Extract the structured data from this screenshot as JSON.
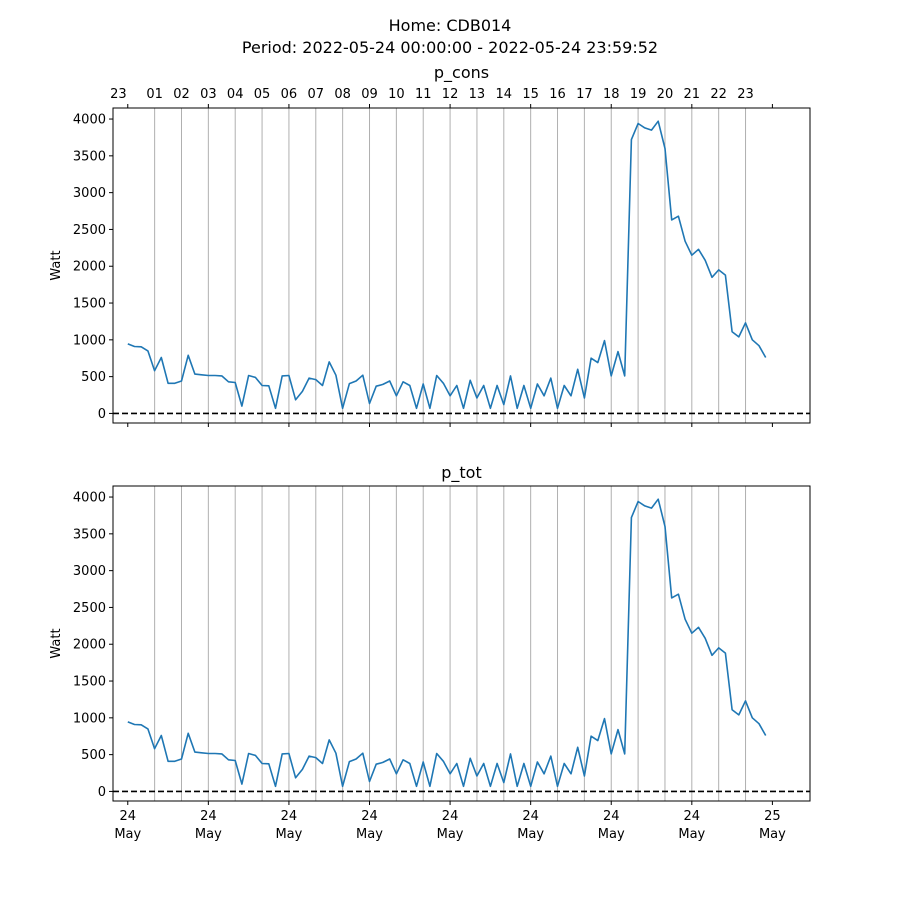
{
  "figure": {
    "title_line1": "Home: CDB014",
    "title_line2": "Period: 2022-05-24 00:00:00 - 2022-05-24 23:59:52"
  },
  "colors": {
    "series": "#1f77b4",
    "hour_grid": "#b0b0b0",
    "zero_line": "#000000"
  },
  "chart_data": [
    {
      "type": "line",
      "title": "p_cons",
      "ylabel": "Watt",
      "xlabel": "",
      "ylim": [
        -130,
        4150
      ],
      "yticks": [
        0,
        500,
        1000,
        1500,
        2000,
        2500,
        3000,
        3500,
        4000
      ],
      "xlim_hours": [
        -0.55,
        25.4
      ],
      "top_hour_tick_labels": [
        "23",
        "01",
        "02",
        "03",
        "04",
        "05",
        "06",
        "07",
        "08",
        "09",
        "10",
        "11",
        "12",
        "13",
        "14",
        "15",
        "16",
        "17",
        "18",
        "19",
        "20",
        "21",
        "22",
        "23"
      ],
      "bottom_date_ticks": [
        {
          "day": "24",
          "month": "May"
        },
        {
          "day": "24",
          "month": "May"
        },
        {
          "day": "24",
          "month": "May"
        },
        {
          "day": "24",
          "month": "May"
        },
        {
          "day": "24",
          "month": "May"
        },
        {
          "day": "24",
          "month": "May"
        },
        {
          "day": "24",
          "month": "May"
        },
        {
          "day": "24",
          "month": "May"
        },
        {
          "day": "25",
          "month": "May"
        }
      ],
      "grid": "vertical hourly",
      "zero_reference_line": true,
      "series": [
        {
          "name": "",
          "x_hours": [
            0.0,
            0.25,
            0.5,
            0.75,
            1.0,
            1.25,
            1.5,
            1.75,
            2.0,
            2.25,
            2.5,
            2.75,
            3.0,
            3.25,
            3.5,
            3.75,
            4.0,
            4.25,
            4.5,
            4.75,
            5.0,
            5.25,
            5.5,
            5.75,
            6.0,
            6.25,
            6.5,
            6.75,
            7.0,
            7.25,
            7.5,
            7.75,
            8.0,
            8.25,
            8.5,
            8.75,
            9.0,
            9.25,
            9.5,
            9.75,
            10.0,
            10.25,
            10.5,
            10.75,
            11.0,
            11.25,
            11.5,
            11.75,
            12.0,
            12.25,
            12.5,
            12.75,
            13.0,
            13.25,
            13.5,
            13.75,
            14.0,
            14.25,
            14.5,
            14.75,
            15.0,
            15.25,
            15.5,
            15.75,
            16.0,
            16.25,
            16.5,
            16.75,
            17.0,
            17.25,
            17.5,
            17.75,
            18.0,
            18.25,
            18.5,
            18.75,
            19.0,
            19.25,
            19.5,
            19.75,
            20.0,
            20.25,
            20.5,
            20.75,
            21.0,
            21.25,
            21.5,
            21.75,
            22.0,
            22.25,
            22.5,
            22.75,
            23.0,
            23.25,
            23.5,
            23.75
          ],
          "values": [
            945,
            910,
            905,
            850,
            580,
            760,
            410,
            410,
            440,
            790,
            535,
            525,
            515,
            515,
            510,
            430,
            420,
            100,
            515,
            490,
            380,
            375,
            70,
            510,
            515,
            185,
            300,
            480,
            460,
            380,
            700,
            520,
            70,
            405,
            440,
            520,
            135,
            370,
            395,
            440,
            240,
            430,
            380,
            70,
            400,
            70,
            515,
            410,
            240,
            380,
            70,
            450,
            210,
            380,
            70,
            380,
            120,
            510,
            70,
            380,
            70,
            400,
            240,
            480,
            70,
            380,
            240,
            600,
            210,
            750,
            690,
            990,
            510,
            840,
            510,
            3720,
            3940,
            3880,
            3850,
            3970,
            3600,
            2630,
            2680,
            2340,
            2150,
            2230,
            2080,
            1850,
            1950,
            1880,
            1110,
            1040,
            1230,
            1000,
            920,
            760
          ]
        }
      ]
    },
    {
      "type": "line",
      "title": "p_tot",
      "ylabel": "Watt",
      "xlabel": "",
      "ylim": [
        -130,
        4150
      ],
      "yticks": [
        0,
        500,
        1000,
        1500,
        2000,
        2500,
        3000,
        3500,
        4000
      ],
      "xlim_hours": [
        -0.55,
        25.4
      ],
      "bottom_date_ticks": [
        {
          "day": "24",
          "month": "May"
        },
        {
          "day": "24",
          "month": "May"
        },
        {
          "day": "24",
          "month": "May"
        },
        {
          "day": "24",
          "month": "May"
        },
        {
          "day": "24",
          "month": "May"
        },
        {
          "day": "24",
          "month": "May"
        },
        {
          "day": "24",
          "month": "May"
        },
        {
          "day": "24",
          "month": "May"
        },
        {
          "day": "25",
          "month": "May"
        }
      ],
      "grid": "vertical hourly",
      "zero_reference_line": true,
      "series": [
        {
          "name": "",
          "x_hours": [
            0.0,
            0.25,
            0.5,
            0.75,
            1.0,
            1.25,
            1.5,
            1.75,
            2.0,
            2.25,
            2.5,
            2.75,
            3.0,
            3.25,
            3.5,
            3.75,
            4.0,
            4.25,
            4.5,
            4.75,
            5.0,
            5.25,
            5.5,
            5.75,
            6.0,
            6.25,
            6.5,
            6.75,
            7.0,
            7.25,
            7.5,
            7.75,
            8.0,
            8.25,
            8.5,
            8.75,
            9.0,
            9.25,
            9.5,
            9.75,
            10.0,
            10.25,
            10.5,
            10.75,
            11.0,
            11.25,
            11.5,
            11.75,
            12.0,
            12.25,
            12.5,
            12.75,
            13.0,
            13.25,
            13.5,
            13.75,
            14.0,
            14.25,
            14.5,
            14.75,
            15.0,
            15.25,
            15.5,
            15.75,
            16.0,
            16.25,
            16.5,
            16.75,
            17.0,
            17.25,
            17.5,
            17.75,
            18.0,
            18.25,
            18.5,
            18.75,
            19.0,
            19.25,
            19.5,
            19.75,
            20.0,
            20.25,
            20.5,
            20.75,
            21.0,
            21.25,
            21.5,
            21.75,
            22.0,
            22.25,
            22.5,
            22.75,
            23.0,
            23.25,
            23.5,
            23.75
          ],
          "values": [
            945,
            910,
            905,
            850,
            580,
            760,
            410,
            410,
            440,
            790,
            535,
            525,
            515,
            515,
            510,
            430,
            420,
            100,
            515,
            490,
            380,
            375,
            70,
            510,
            515,
            185,
            300,
            480,
            460,
            380,
            700,
            520,
            70,
            405,
            440,
            520,
            135,
            370,
            395,
            440,
            240,
            430,
            380,
            70,
            400,
            70,
            515,
            410,
            240,
            380,
            70,
            450,
            210,
            380,
            70,
            380,
            120,
            510,
            70,
            380,
            70,
            400,
            240,
            480,
            70,
            380,
            240,
            600,
            210,
            750,
            690,
            990,
            510,
            840,
            510,
            3720,
            3940,
            3880,
            3850,
            3970,
            3600,
            2630,
            2680,
            2340,
            2150,
            2230,
            2080,
            1850,
            1950,
            1880,
            1110,
            1040,
            1230,
            1000,
            920,
            760
          ]
        }
      ]
    }
  ]
}
